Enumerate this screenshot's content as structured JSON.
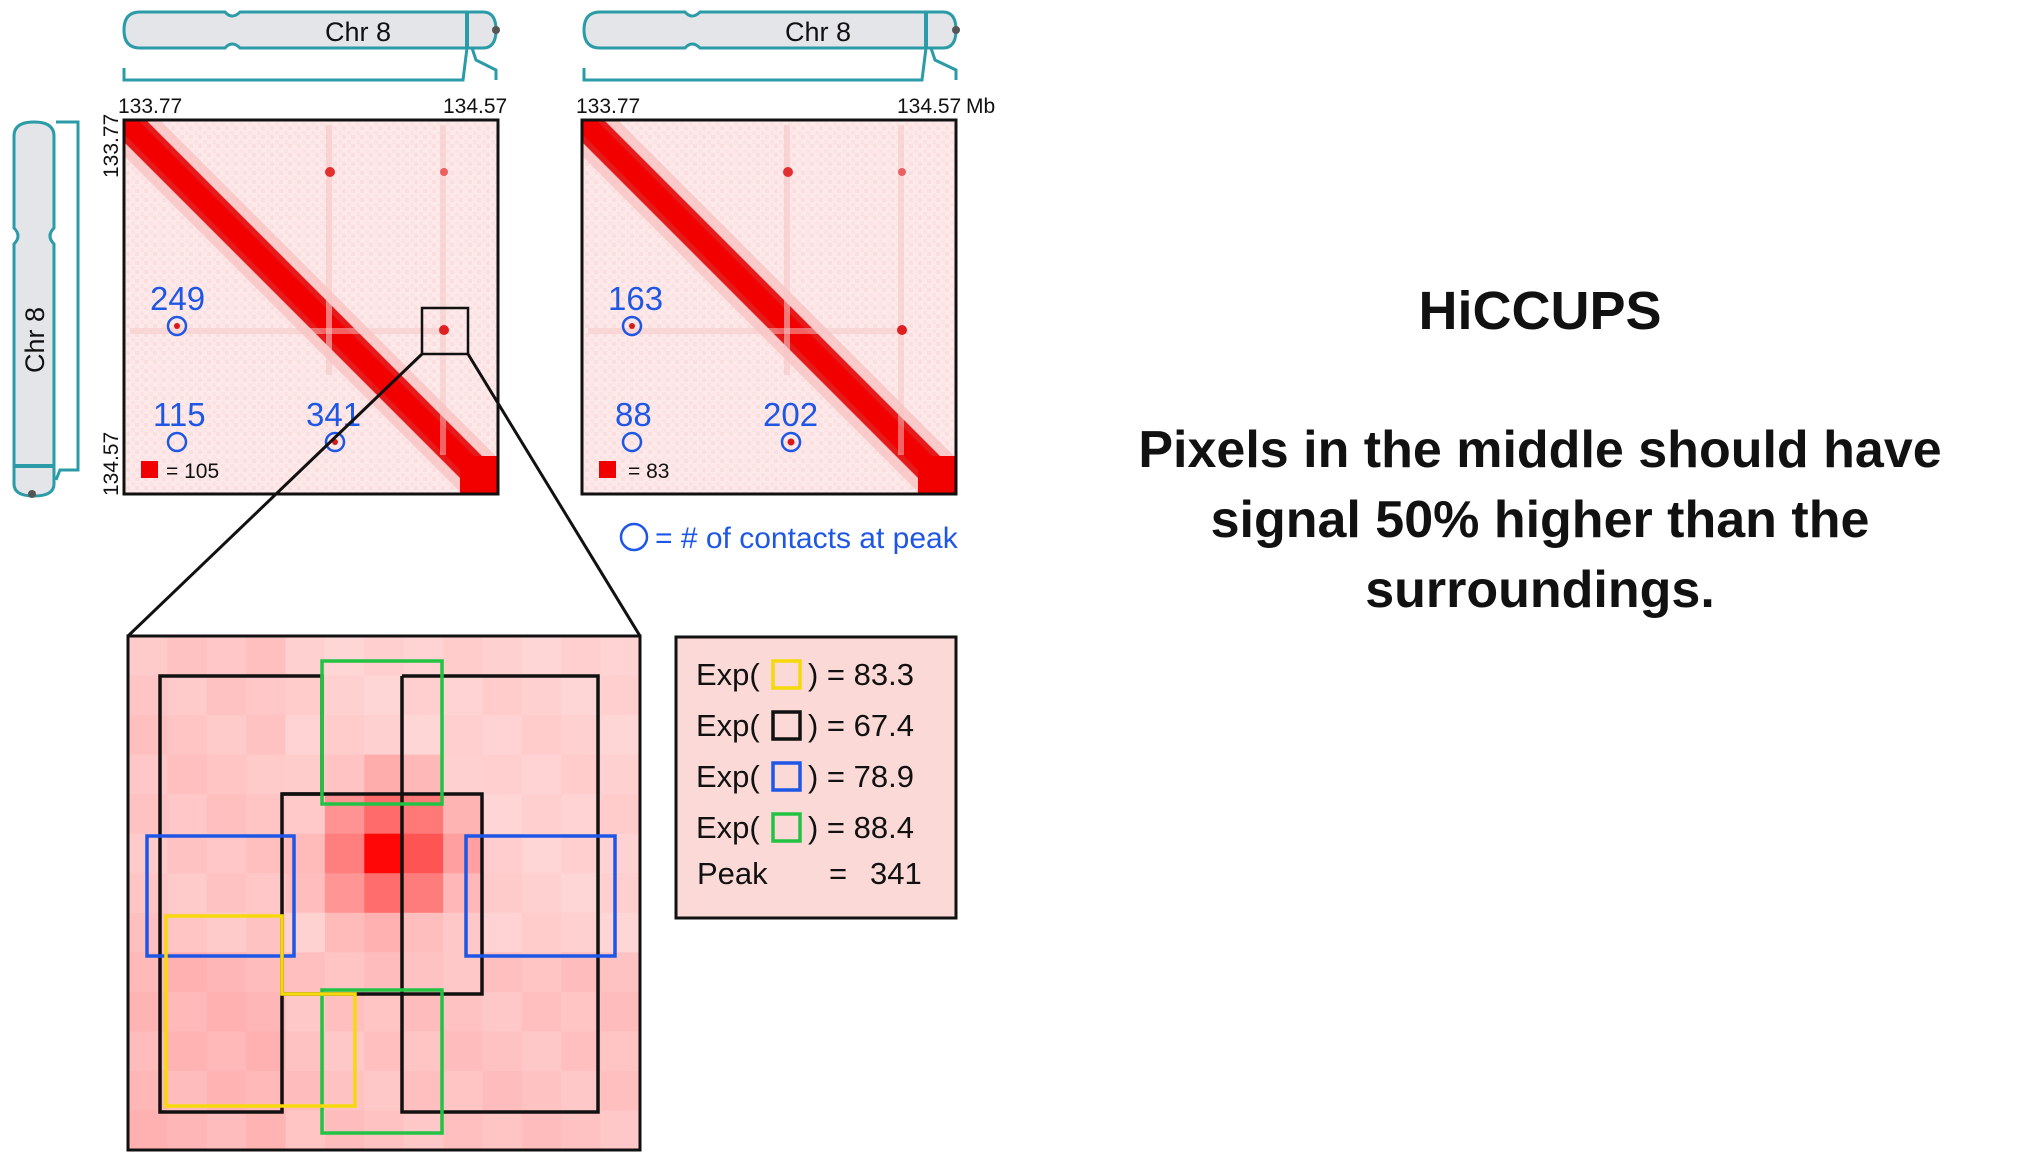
{
  "colors": {
    "chromosome_outline": "#2a9ba7",
    "chromosome_fill": "#e3e5e8",
    "contact_red": "#e60000",
    "contact_bg": "#fde9e9",
    "peak_circle_blue": "#1e56e6",
    "box_yellow": "#f5d90a",
    "box_black": "#000000",
    "box_blue": "#1e56e6",
    "box_green": "#22c244",
    "legend_bg": "#fbd9d7"
  },
  "chromosome_labels": {
    "top_left": "Chr 8",
    "top_right": "Chr 8",
    "left_vertical": "Chr 8"
  },
  "axis": {
    "left_map_x_start": "133.77",
    "left_map_x_end": "134.57",
    "right_map_x_start": "133.77",
    "right_map_x_end": "134.57",
    "unit": "Mb",
    "y_start": "133.77",
    "y_end": "134.57"
  },
  "left_map": {
    "peaks": [
      "249",
      "115",
      "341"
    ],
    "scale_value": "= 105"
  },
  "right_map": {
    "peaks": [
      "163",
      "88",
      "202"
    ],
    "scale_value": "= 83"
  },
  "circle_legend": "= # of contacts at peak",
  "expected_legend": [
    {
      "prefix": "Exp(",
      "box": "yellow",
      "suffix": ") = 83.3"
    },
    {
      "prefix": "Exp(",
      "box": "black",
      "suffix": ") = 67.4"
    },
    {
      "prefix": "Exp(",
      "box": "blue",
      "suffix": ") = 78.9"
    },
    {
      "prefix": "Exp(",
      "box": "green",
      "suffix": ") = 88.4"
    }
  ],
  "peak_row": {
    "label": "Peak",
    "equals": "=",
    "value": "341"
  },
  "side_text": {
    "title": "HiCCUPS",
    "line1": "Pixels in the middle should have",
    "line2": "signal 50% higher than the",
    "line3": "surroundings."
  }
}
